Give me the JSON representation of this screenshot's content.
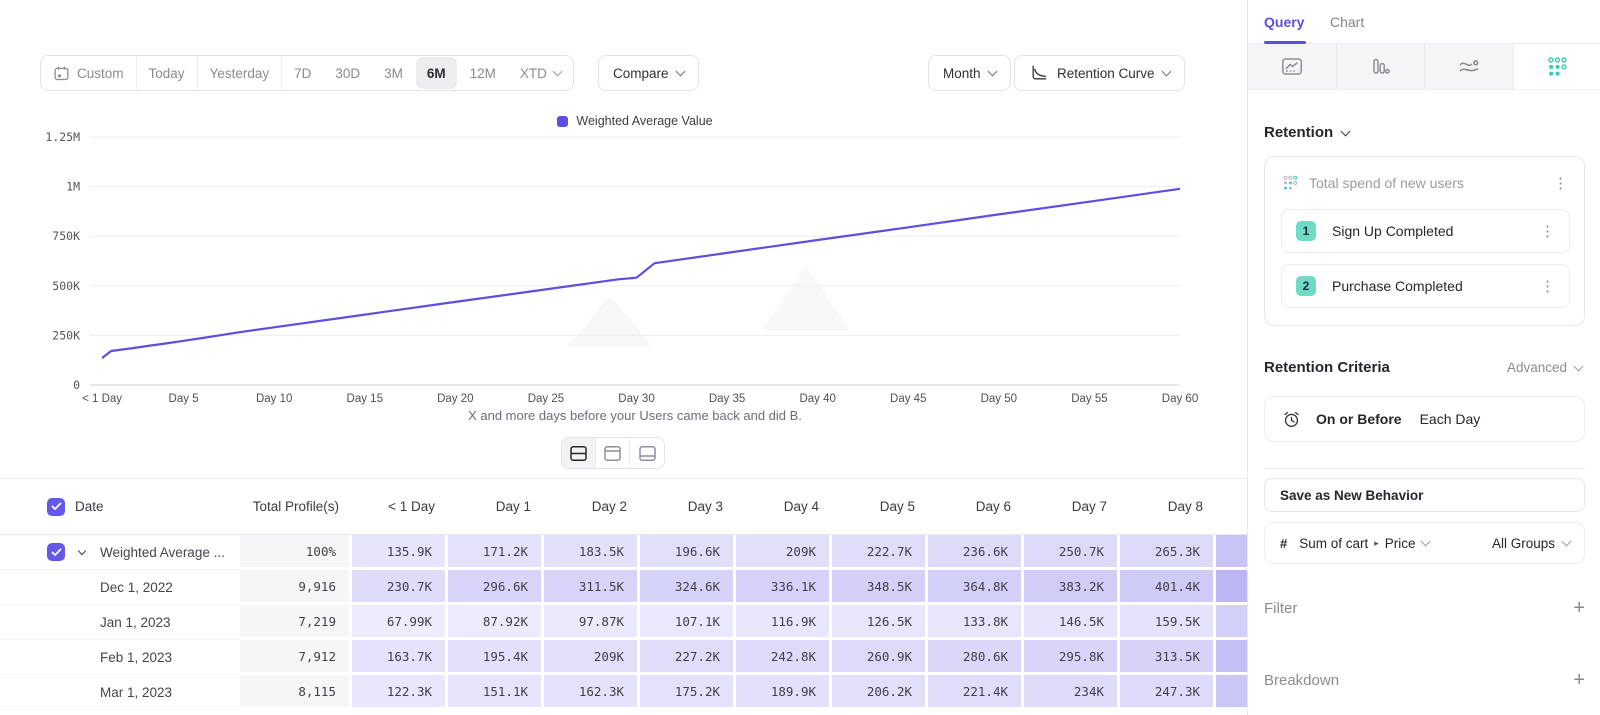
{
  "toolbar": {
    "ranges": [
      "Custom",
      "Today",
      "Yesterday",
      "7D",
      "30D",
      "3M",
      "6M",
      "12M",
      "XTD"
    ],
    "selected_range": "6M",
    "compare_label": "Compare",
    "granularity_label": "Month",
    "chart_type_label": "Retention Curve"
  },
  "chart": {
    "legend_label": "Weighted Average Value",
    "caption": "X and more days before your Users came back and did B.",
    "accent_color": "#5b4ee4"
  },
  "chart_data": {
    "type": "line",
    "title": "",
    "xlabel": "X and more days before your Users came back and did B.",
    "ylabel": "",
    "grid": true,
    "legend_position": "top",
    "ylim": [
      0,
      1250000
    ],
    "y_ticks": [
      "0",
      "250K",
      "500K",
      "750K",
      "1M",
      "1.25M"
    ],
    "y_tick_values": [
      0,
      250000,
      500000,
      750000,
      1000000,
      1250000
    ],
    "x_ticks": [
      "< 1 Day",
      "Day 5",
      "Day 10",
      "Day 15",
      "Day 20",
      "Day 25",
      "Day 30",
      "Day 35",
      "Day 40",
      "Day 45",
      "Day 50",
      "Day 55",
      "Day 60"
    ],
    "x_tick_days": [
      0.5,
      5,
      10,
      15,
      20,
      25,
      30,
      35,
      40,
      45,
      50,
      55,
      60
    ],
    "series": [
      {
        "name": "Weighted Average Value",
        "color": "#5b4ee4",
        "points_day_value": [
          [
            0.5,
            135900
          ],
          [
            1,
            171200
          ],
          [
            2,
            183500
          ],
          [
            3,
            196600
          ],
          [
            4,
            209000
          ],
          [
            5,
            222700
          ],
          [
            6,
            236600
          ],
          [
            7,
            250700
          ],
          [
            8,
            265300
          ],
          [
            10,
            291000
          ],
          [
            15,
            355000
          ],
          [
            20,
            419000
          ],
          [
            25,
            482000
          ],
          [
            29,
            533000
          ],
          [
            30,
            541000
          ],
          [
            31,
            614000
          ],
          [
            35,
            666000
          ],
          [
            40,
            731000
          ],
          [
            45,
            795000
          ],
          [
            50,
            860000
          ],
          [
            55,
            924000
          ],
          [
            60,
            989000
          ]
        ]
      }
    ]
  },
  "table": {
    "headers": [
      "Date",
      "Total Profile(s)",
      "< 1 Day",
      "Day 1",
      "Day 2",
      "Day 3",
      "Day 4",
      "Day 5",
      "Day 6",
      "Day 7",
      "Day 8"
    ],
    "rows": [
      {
        "name": "Weighted Average ...",
        "checked": true,
        "expandable": true,
        "total": "100%",
        "values": [
          "135.9K",
          "171.2K",
          "183.5K",
          "196.6K",
          "209K",
          "222.7K",
          "236.6K",
          "250.7K",
          "265.3K"
        ]
      },
      {
        "name": "Dec 1, 2022",
        "checked": false,
        "expandable": false,
        "total": "9,916",
        "values": [
          "230.7K",
          "296.6K",
          "311.5K",
          "324.6K",
          "336.1K",
          "348.5K",
          "364.8K",
          "383.2K",
          "401.4K"
        ]
      },
      {
        "name": "Jan 1, 2023",
        "checked": false,
        "expandable": false,
        "total": "7,219",
        "values": [
          "67.99K",
          "87.92K",
          "97.87K",
          "107.1K",
          "116.9K",
          "126.5K",
          "133.8K",
          "146.5K",
          "159.5K"
        ]
      },
      {
        "name": "Feb 1, 2023",
        "checked": false,
        "expandable": false,
        "total": "7,912",
        "values": [
          "163.7K",
          "195.4K",
          "209K",
          "227.2K",
          "242.8K",
          "260.9K",
          "280.6K",
          "295.8K",
          "313.5K"
        ]
      },
      {
        "name": "Mar 1, 2023",
        "checked": false,
        "expandable": false,
        "total": "8,115",
        "values": [
          "122.3K",
          "151.1K",
          "162.3K",
          "175.2K",
          "189.9K",
          "206.2K",
          "221.4K",
          "234K",
          "247.3K"
        ]
      }
    ]
  },
  "sidebar": {
    "tabs": [
      {
        "label": "Query"
      },
      {
        "label": "Chart"
      }
    ],
    "section_label": "Retention",
    "behavior_card": {
      "title": "Total spend of new users",
      "steps": [
        {
          "index": "1",
          "label": "Sign Up Completed"
        },
        {
          "index": "2",
          "label": "Purchase Completed"
        }
      ]
    },
    "criteria": {
      "title": "Retention Criteria",
      "mode": "Advanced",
      "condition": "On or Before",
      "unit": "Each Day"
    },
    "save_button_label": "Save as New Behavior",
    "property": {
      "prefix": "#",
      "label": "Sum of cart",
      "sub_label": "Price",
      "groups": "All Groups"
    },
    "filter_label": "Filter",
    "breakdown_label": "Breakdown",
    "teal_color": "#4ccfbf"
  }
}
